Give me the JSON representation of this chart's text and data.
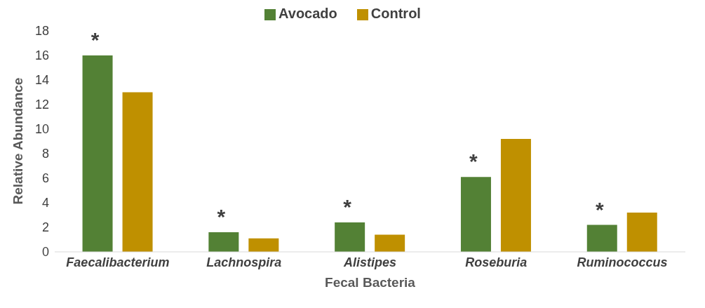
{
  "chart_data": {
    "type": "bar",
    "xlabel": "Fecal Bacteria",
    "ylabel": "Relative Abundance",
    "categories": [
      "Faecalibacterium",
      "Lachnospira",
      "Alistipes",
      "Roseburia",
      "Ruminococcus"
    ],
    "series": [
      {
        "name": "Avocado",
        "color": "#538135",
        "values": [
          16,
          1.6,
          2.4,
          6.1,
          2.2
        ]
      },
      {
        "name": "Control",
        "color": "#bf9000",
        "values": [
          13,
          1.1,
          1.4,
          9.2,
          3.2
        ]
      }
    ],
    "ylim": [
      0,
      18
    ],
    "yticks": [
      0,
      2,
      4,
      6,
      8,
      10,
      12,
      14,
      16,
      18
    ],
    "grid": false,
    "legend": "top",
    "annotations": [
      "*",
      "*",
      "*",
      "*",
      "*"
    ]
  }
}
